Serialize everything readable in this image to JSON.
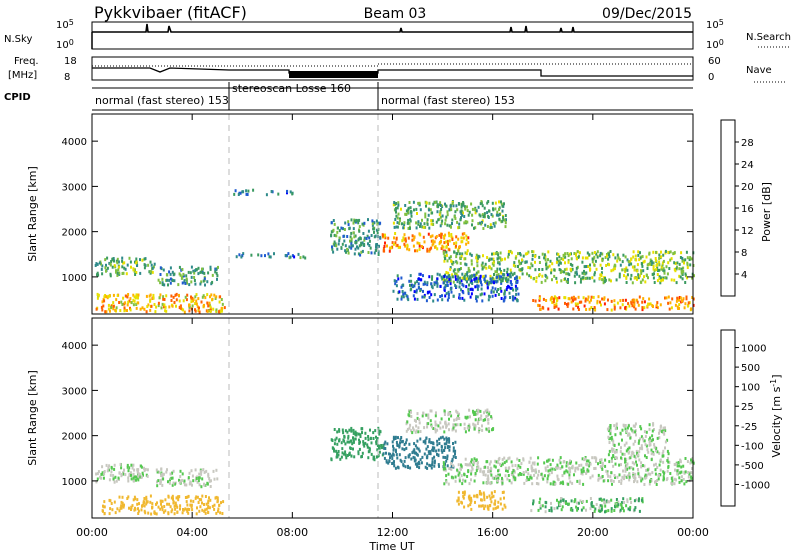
{
  "header": {
    "station": "Pykkvibaer (fitACF)",
    "beam": "Beam 03",
    "date": "09/Dec/2015"
  },
  "status_panels": {
    "nsky_label": "N.Sky",
    "nsearch_label": "N.Search",
    "nsky_ticks": [
      "10^5",
      "10^0"
    ],
    "nsearch_ticks": [
      "10^5",
      "10^0"
    ],
    "freq_label_1": "Freq.",
    "freq_label_2": "[MHz]",
    "freq_ticks": [
      "18",
      "8"
    ],
    "nave_label": "Nave",
    "nave_ticks": [
      "60",
      "0"
    ],
    "cpid_label": "CPID",
    "modes": [
      {
        "text": "normal (fast stereo) 153",
        "start": 0.0,
        "end": 5.5
      },
      {
        "text": "stereoscan Losse 160",
        "start": 5.5,
        "end": 11.6
      },
      {
        "text": "normal (fast stereo) 153",
        "start": 11.6,
        "end": 24.0
      }
    ]
  },
  "chart_data": [
    {
      "type": "heatmap",
      "name": "power",
      "ylabel": "Slant Range [km]",
      "xlabel": "Time UT",
      "xlim": [
        0,
        24
      ],
      "ylim": [
        180,
        4600
      ],
      "x_ticks": [
        "00:00",
        "04:00",
        "08:00",
        "12:00",
        "16:00",
        "20:00",
        "00:00"
      ],
      "y_ticks": [
        1000,
        2000,
        3000,
        4000
      ],
      "colorbar": {
        "label": "Power [dB]",
        "ticks": [
          4,
          8,
          12,
          16,
          20,
          24,
          28
        ],
        "range": [
          0,
          32
        ],
        "colors": [
          "#0000ff",
          "#1f5bd0",
          "#2f8a8a",
          "#3a9a60",
          "#80c040",
          "#e8e000",
          "#ffb000",
          "#ff6000",
          "#ff2000",
          "#e00000"
        ]
      },
      "patches": [
        {
          "t0": 0.1,
          "t1": 2.5,
          "r0": 1050,
          "r1": 1450,
          "v": 12
        },
        {
          "t0": 0.1,
          "t1": 5.3,
          "r0": 250,
          "r1": 650,
          "v": 20
        },
        {
          "t0": 2.6,
          "t1": 5.0,
          "r0": 850,
          "r1": 1250,
          "v": 10
        },
        {
          "t0": 5.6,
          "t1": 8.0,
          "r0": 2850,
          "r1": 2950,
          "v": 8
        },
        {
          "t0": 5.6,
          "t1": 8.5,
          "r0": 1450,
          "r1": 1550,
          "v": 8
        },
        {
          "t0": 9.5,
          "t1": 11.5,
          "r0": 1500,
          "r1": 2300,
          "v": 10
        },
        {
          "t0": 11.5,
          "t1": 15.0,
          "r0": 1600,
          "r1": 2000,
          "v": 22
        },
        {
          "t0": 12.0,
          "t1": 16.5,
          "r0": 2100,
          "r1": 2700,
          "v": 12
        },
        {
          "t0": 14.0,
          "t1": 24.0,
          "r0": 900,
          "r1": 1600,
          "v": 14
        },
        {
          "t0": 17.5,
          "t1": 24.0,
          "r0": 300,
          "r1": 600,
          "v": 22
        },
        {
          "t0": 12.0,
          "t1": 17.0,
          "r0": 500,
          "r1": 1100,
          "v": 6
        }
      ]
    },
    {
      "type": "heatmap",
      "name": "velocity",
      "ylabel": "Slant Range [km]",
      "xlabel": "Time UT",
      "xlim": [
        0,
        24
      ],
      "ylim": [
        180,
        4600
      ],
      "x_ticks": [
        "00:00",
        "04:00",
        "08:00",
        "12:00",
        "16:00",
        "20:00",
        "00:00"
      ],
      "y_ticks": [
        1000,
        2000,
        3000,
        4000
      ],
      "colorbar": {
        "label": "Velocity [m s^-1]",
        "ticks": [
          "1000",
          "500",
          "100",
          "25",
          "-25",
          "-100",
          "-500",
          "-1000"
        ],
        "colors": [
          "#1a3fd8",
          "#2f7c90",
          "#35a060",
          "#55c850",
          "#c8c8c0",
          "#c8c8c0",
          "#f0b830",
          "#ff8000",
          "#ff3000",
          "#ff0000"
        ]
      },
      "patches": [
        {
          "t0": 0.1,
          "t1": 2.3,
          "r0": 1000,
          "r1": 1400,
          "v": 0
        },
        {
          "t0": 0.3,
          "t1": 5.2,
          "r0": 300,
          "r1": 700,
          "v": -200
        },
        {
          "t0": 2.5,
          "t1": 5.0,
          "r0": 900,
          "r1": 1300,
          "v": 0
        },
        {
          "t0": 9.5,
          "t1": 11.6,
          "r0": 1500,
          "r1": 2200,
          "v": 200
        },
        {
          "t0": 11.6,
          "t1": 14.5,
          "r0": 1300,
          "r1": 2000,
          "v": 600
        },
        {
          "t0": 12.5,
          "t1": 16.0,
          "r0": 2100,
          "r1": 2600,
          "v": 0
        },
        {
          "t0": 14.0,
          "t1": 24.0,
          "r0": 950,
          "r1": 1550,
          "v": 0
        },
        {
          "t0": 17.5,
          "t1": 22.0,
          "r0": 350,
          "r1": 650,
          "v": 80
        },
        {
          "t0": 14.5,
          "t1": 16.5,
          "r0": 400,
          "r1": 800,
          "v": -200
        },
        {
          "t0": 20.5,
          "t1": 23.0,
          "r0": 1550,
          "r1": 2300,
          "v": 0
        }
      ]
    }
  ]
}
